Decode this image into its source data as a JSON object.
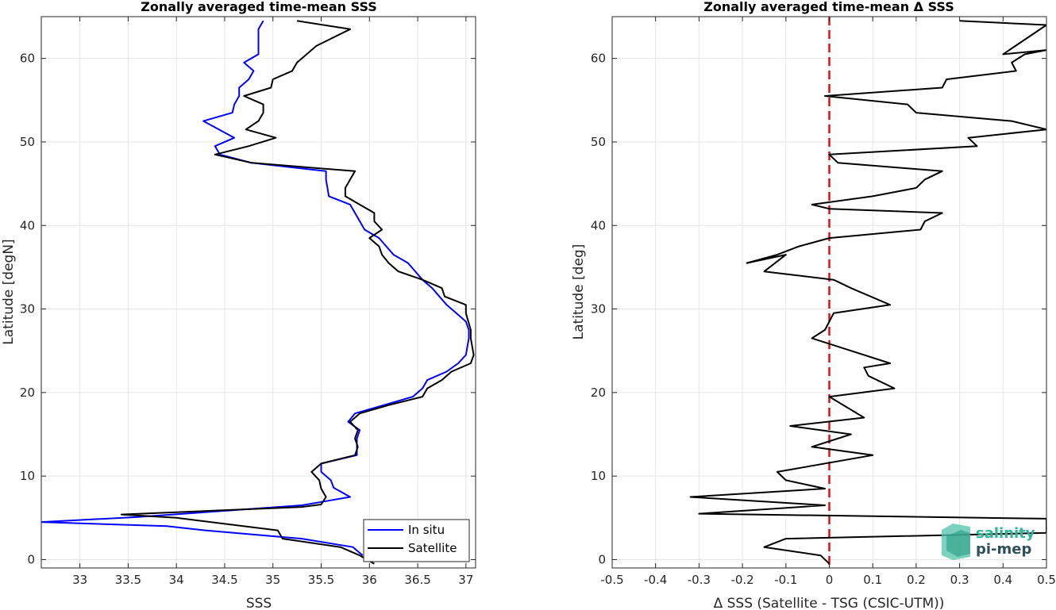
{
  "chart_data": [
    {
      "type": "line",
      "title": "Zonally averaged time-mean SSS",
      "xlabel": "SSS",
      "ylabel": "Latitude [degN]",
      "xlim": [
        32.6,
        37.1
      ],
      "ylim": [
        -1,
        65
      ],
      "xticks": [
        "33",
        "33.5",
        "34",
        "34.5",
        "35",
        "35.5",
        "36",
        "36.5",
        "37"
      ],
      "yticks": [
        "0",
        "10",
        "20",
        "30",
        "40",
        "50",
        "60"
      ],
      "grid": true,
      "legend_location": "bottom-right",
      "series": [
        {
          "name": "In situ",
          "color": "#0000ff",
          "points": [
            [
              35.93,
              0.5
            ],
            [
              35.83,
              1.5
            ],
            [
              35.3,
              2.5
            ],
            [
              34.3,
              3.5
            ],
            [
              33.9,
              4.0
            ],
            [
              32.6,
              4.5
            ],
            [
              33.6,
              5.1
            ],
            [
              35.3,
              6.5
            ],
            [
              35.6,
              7.1
            ],
            [
              35.8,
              7.5
            ],
            [
              35.63,
              8.6
            ],
            [
              35.6,
              9.5
            ],
            [
              35.5,
              10.5
            ],
            [
              35.5,
              11.5
            ],
            [
              35.87,
              12.5
            ],
            [
              35.87,
              14.5
            ],
            [
              35.9,
              15.5
            ],
            [
              35.78,
              16.5
            ],
            [
              35.85,
              17.5
            ],
            [
              36.15,
              18.5
            ],
            [
              36.45,
              19.5
            ],
            [
              36.55,
              20.5
            ],
            [
              36.6,
              21.5
            ],
            [
              36.8,
              22.5
            ],
            [
              36.92,
              23.5
            ],
            [
              37.0,
              24.5
            ],
            [
              37.03,
              26.5
            ],
            [
              37.03,
              27.5
            ],
            [
              37.0,
              28.5
            ],
            [
              36.9,
              29.5
            ],
            [
              36.8,
              30.5
            ],
            [
              36.65,
              32.5
            ],
            [
              36.55,
              33.5
            ],
            [
              36.4,
              35.5
            ],
            [
              36.25,
              36.5
            ],
            [
              36.1,
              38.5
            ],
            [
              35.95,
              39.5
            ],
            [
              35.85,
              41.5
            ],
            [
              35.8,
              42.5
            ],
            [
              35.58,
              43.5
            ],
            [
              35.55,
              45.5
            ],
            [
              35.55,
              46.5
            ],
            [
              34.78,
              47.5
            ],
            [
              34.45,
              48.5
            ],
            [
              34.4,
              49.5
            ],
            [
              34.6,
              50.5
            ],
            [
              34.28,
              52.5
            ],
            [
              34.58,
              53.5
            ],
            [
              34.6,
              54.5
            ],
            [
              34.65,
              55.5
            ],
            [
              34.65,
              56.5
            ],
            [
              34.75,
              57.5
            ],
            [
              34.8,
              58.5
            ],
            [
              34.7,
              59.5
            ],
            [
              34.85,
              60.5
            ],
            [
              34.85,
              62.5
            ],
            [
              34.85,
              63.5
            ],
            [
              34.9,
              64.5
            ]
          ]
        },
        {
          "name": "Satellite",
          "color": "#000000",
          "points": [
            [
              36.05,
              -0.5
            ],
            [
              35.9,
              0.5
            ],
            [
              35.7,
              1.5
            ],
            [
              35.1,
              2.5
            ],
            [
              35.05,
              3.5
            ],
            [
              34.0,
              5.0
            ],
            [
              33.43,
              5.4
            ],
            [
              35.3,
              6.3
            ],
            [
              35.5,
              6.6
            ],
            [
              35.55,
              7.5
            ],
            [
              35.5,
              8.5
            ],
            [
              35.48,
              9.5
            ],
            [
              35.4,
              10.5
            ],
            [
              35.5,
              11.5
            ],
            [
              35.85,
              12.5
            ],
            [
              35.88,
              13.5
            ],
            [
              35.85,
              14.5
            ],
            [
              35.88,
              15.5
            ],
            [
              35.8,
              16.5
            ],
            [
              35.9,
              17.5
            ],
            [
              36.2,
              18.5
            ],
            [
              36.55,
              19.5
            ],
            [
              36.6,
              20.5
            ],
            [
              36.75,
              21.5
            ],
            [
              36.85,
              22.5
            ],
            [
              37.05,
              23.5
            ],
            [
              37.08,
              24.5
            ],
            [
              37.05,
              26.5
            ],
            [
              37.05,
              27.5
            ],
            [
              37.0,
              29.5
            ],
            [
              37.0,
              30.5
            ],
            [
              36.78,
              31.5
            ],
            [
              36.75,
              32.5
            ],
            [
              36.55,
              33.5
            ],
            [
              36.3,
              34.5
            ],
            [
              36.2,
              35.5
            ],
            [
              36.13,
              36.5
            ],
            [
              36.1,
              37.5
            ],
            [
              36.0,
              38.5
            ],
            [
              36.13,
              39.5
            ],
            [
              36.05,
              40.5
            ],
            [
              36.05,
              41.5
            ],
            [
              35.75,
              43.5
            ],
            [
              35.75,
              44.5
            ],
            [
              35.85,
              46.5
            ],
            [
              34.78,
              47.5
            ],
            [
              34.4,
              48.5
            ],
            [
              34.75,
              49.5
            ],
            [
              35.03,
              50.5
            ],
            [
              34.72,
              51.5
            ],
            [
              34.85,
              52.5
            ],
            [
              34.9,
              53.5
            ],
            [
              34.9,
              54.5
            ],
            [
              34.7,
              55.5
            ],
            [
              34.98,
              56.5
            ],
            [
              35.0,
              57.5
            ],
            [
              35.2,
              58.5
            ],
            [
              35.25,
              59.5
            ],
            [
              35.45,
              61.5
            ],
            [
              35.8,
              63.5
            ],
            [
              35.25,
              64.5
            ]
          ]
        }
      ]
    },
    {
      "type": "line",
      "title": "Zonally averaged time-mean Δ SSS",
      "xlabel": "Δ SSS (Satellite - TSG (CSIC-UTM))",
      "ylabel": "Latitude [deg]",
      "xlim": [
        -0.5,
        0.5
      ],
      "ylim": [
        -1,
        65
      ],
      "xticks": [
        "-0.5",
        "-0.4",
        "-0.3",
        "-0.2",
        "-0.1",
        "0",
        "0.1",
        "0.2",
        "0.3",
        "0.4",
        "0.5"
      ],
      "yticks": [
        "0",
        "10",
        "20",
        "30",
        "40",
        "50",
        "60"
      ],
      "grid": true,
      "reference_line": {
        "x": 0,
        "color": "#dd1111",
        "style": "dashed"
      },
      "series": [
        {
          "name": "",
          "color": "#000000",
          "points": [
            [
              0,
              -0.5
            ],
            [
              -0.02,
              0.5
            ],
            [
              -0.15,
              1.5
            ],
            [
              -0.1,
              2.5
            ],
            [
              0.5,
              3.2
            ],
            [
              0.5,
              4.9
            ],
            [
              -0.3,
              5.5
            ],
            [
              -0.01,
              6.5
            ],
            [
              -0.32,
              7.5
            ],
            [
              -0.01,
              8.5
            ],
            [
              -0.1,
              9.5
            ],
            [
              -0.12,
              10.5
            ],
            [
              0.1,
              12.5
            ],
            [
              -0.04,
              13.5
            ],
            [
              0.05,
              15.0
            ],
            [
              -0.09,
              16.0
            ],
            [
              0.08,
              17.0
            ],
            [
              0,
              19.5
            ],
            [
              0.15,
              20.5
            ],
            [
              0.09,
              22.0
            ],
            [
              0.08,
              23.0
            ],
            [
              0.14,
              23.5
            ],
            [
              0.02,
              25.5
            ],
            [
              -0.04,
              26.5
            ],
            [
              -0.01,
              27.5
            ],
            [
              0,
              28.5
            ],
            [
              0.01,
              29.5
            ],
            [
              0.14,
              30.5
            ],
            [
              0.05,
              32.5
            ],
            [
              0.01,
              33.5
            ],
            [
              -0.15,
              34.5
            ],
            [
              -0.1,
              36.5
            ],
            [
              -0.19,
              35.5
            ],
            [
              -0.12,
              36.5
            ],
            [
              -0.07,
              37.5
            ],
            [
              0,
              38.5
            ],
            [
              0.21,
              39.5
            ],
            [
              0.22,
              40.5
            ],
            [
              0.26,
              41.5
            ],
            [
              0,
              42.0
            ],
            [
              -0.04,
              42.5
            ],
            [
              0.1,
              43.5
            ],
            [
              0.2,
              44.5
            ],
            [
              0.22,
              45.5
            ],
            [
              0.26,
              46.5
            ],
            [
              0.02,
              47.5
            ],
            [
              0,
              48.5
            ],
            [
              0.34,
              49.5
            ],
            [
              0.32,
              50.5
            ],
            [
              0.5,
              51.5
            ],
            [
              0.42,
              52.5
            ],
            [
              0.2,
              53.5
            ],
            [
              0.18,
              54.5
            ],
            [
              -0.01,
              55.5
            ],
            [
              0.26,
              56.5
            ],
            [
              0.27,
              57.5
            ],
            [
              0.43,
              58.5
            ],
            [
              0.42,
              59.5
            ],
            [
              0.45,
              60.5
            ],
            [
              0.5,
              61.0
            ],
            [
              0.4,
              60.5
            ],
            [
              0.5,
              64.0
            ],
            [
              0.3,
              64.5
            ]
          ]
        }
      ]
    }
  ],
  "legend": {
    "entries": [
      "In situ",
      "Satellite"
    ]
  },
  "logo": {
    "line1": "salinity",
    "line2": "pi-mep"
  }
}
